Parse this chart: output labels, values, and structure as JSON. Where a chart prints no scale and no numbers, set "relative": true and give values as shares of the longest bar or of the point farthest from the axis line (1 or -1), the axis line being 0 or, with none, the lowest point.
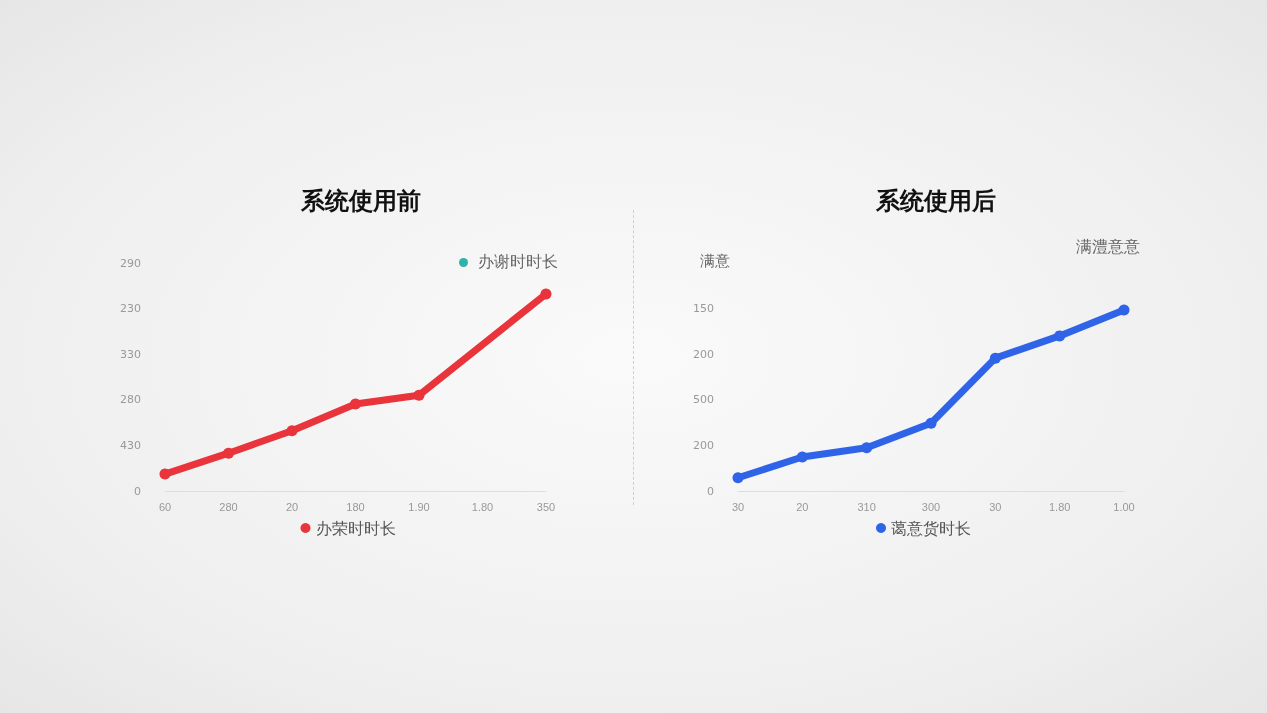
{
  "chart_data": [
    {
      "type": "line",
      "title": "系统使用前",
      "categories": [
        "60",
        "280",
        "20",
        "180",
        "1.90",
        "1.80",
        "350"
      ],
      "series": [
        {
          "name": "办荣时时长",
          "color": "#e8343a",
          "values": [
            0.086,
            0.192,
            0.306,
            0.442,
            0.486,
            null,
            1
          ]
        }
      ],
      "relative": true,
      "legend": "bottom",
      "marker": "circle",
      "annotations": [
        "办谢时时长",
        "0",
        "430",
        "280",
        "330",
        "230",
        "290"
      ]
    },
    {
      "type": "line",
      "title": "系统使用后",
      "ylabel": "满意",
      "categories": [
        "30",
        "20",
        "310",
        "300",
        "30",
        "1.80",
        "1.00"
      ],
      "series": [
        {
          "name": "蔼意货时长",
          "color": "#2f63e8",
          "values": [
            0.073,
            0.188,
            0.239,
            0.374,
            0.734,
            0.857,
            1
          ]
        }
      ],
      "relative": true,
      "legend": "bottom",
      "marker": "circle",
      "annotations": [
        "满澧意意",
        "0",
        "200",
        "500",
        "200",
        "150"
      ]
    }
  ]
}
